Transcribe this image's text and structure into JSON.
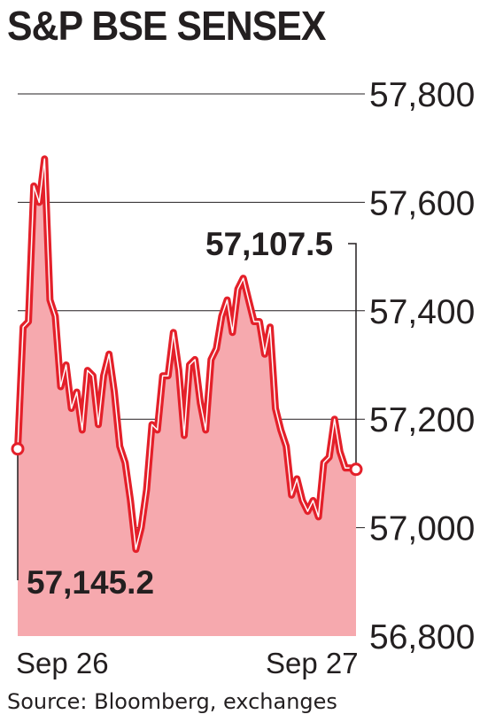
{
  "title": "S&P BSE SENSEX",
  "source": "Source: Bloomberg, exchanges",
  "colors": {
    "line": "#e4202a",
    "area": "#f6a9ae",
    "grid": "#231f20",
    "text": "#231f20"
  },
  "chart_data": {
    "type": "area",
    "title": "S&P BSE SENSEX",
    "xlabel": "",
    "ylabel": "",
    "ylim": [
      56800,
      57800
    ],
    "yticks": [
      "57,800",
      "57,600",
      "57,400",
      "57,200",
      "57,000",
      "56,800"
    ],
    "yvalues": [
      57800,
      57600,
      57400,
      57200,
      57000,
      56800
    ],
    "xticks": [
      "Sep 26",
      "Sep 27"
    ],
    "xtick_positions": [
      0,
      70
    ],
    "grid": true,
    "annotations": [
      {
        "label": "57,145.2",
        "x": 0,
        "y": 57145.2
      },
      {
        "label": "57,107.5",
        "x": 77,
        "y": 57107.5
      }
    ],
    "series": [
      {
        "values": [
          57145.2,
          57370,
          57380,
          57630,
          57600,
          57680,
          57420,
          57390,
          57260,
          57300,
          57220,
          57250,
          57180,
          57290,
          57280,
          57190,
          57280,
          57320,
          57250,
          57150,
          57120,
          57050,
          56960,
          57000,
          57070,
          57190,
          57180,
          57280,
          57280,
          57360,
          57290,
          57170,
          57300,
          57310,
          57230,
          57180,
          57310,
          57330,
          57390,
          57420,
          57360,
          57440,
          57460,
          57420,
          57380,
          57380,
          57320,
          57370,
          57220,
          57180,
          57150,
          57060,
          57090,
          57050,
          57030,
          57050,
          57020,
          57120,
          57130,
          57200,
          57140,
          57110,
          57110,
          57107.5
        ]
      }
    ]
  }
}
